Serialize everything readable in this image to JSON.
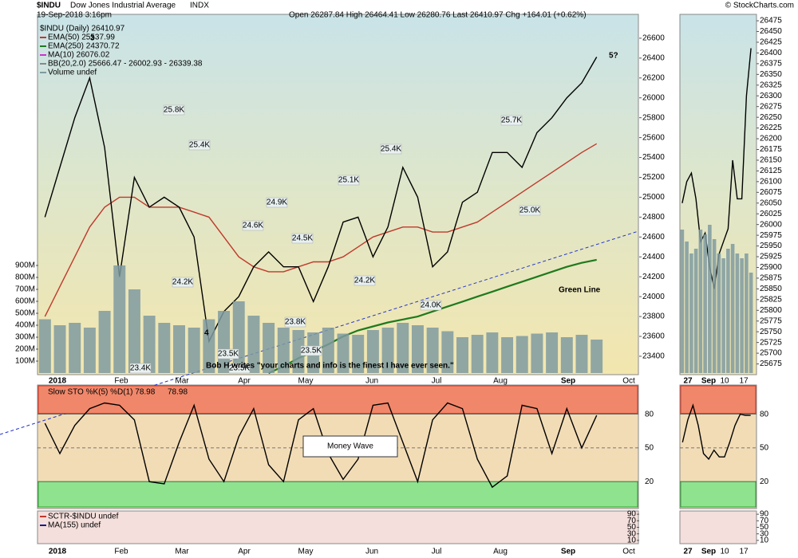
{
  "header": {
    "symbol": "$INDU",
    "name": "Dow Jones Industrial Average",
    "exchange": "INDX",
    "date": "19-Sep-2018 3:16pm",
    "quote": "Open 26287.84  High 26464.41  Low 26280.76  Last 26410.97  Chg +164.01 (+0.62%)",
    "credit": "© StockCharts.com"
  },
  "chart_data": [
    {
      "type": "line",
      "legend_title": "$INDU (Daily) 26410.97",
      "x_labels": [
        "2018",
        "Feb",
        "Mar",
        "Apr",
        "May",
        "Jun",
        "Jul",
        "Aug",
        "Sep",
        "Oct"
      ],
      "ylim": [
        23215,
        26840
      ],
      "yticks": [
        23400,
        23600,
        23800,
        24000,
        24200,
        24400,
        24600,
        24800,
        25000,
        25200,
        25400,
        25600,
        25800,
        26000,
        26200,
        26400,
        26600
      ],
      "grid": false,
      "series": [
        {
          "name": "EMA(50) 25537.99",
          "color": "#c0392b",
          "values": [
            23800,
            24100,
            24400,
            24700,
            24900,
            25000,
            25000,
            24900,
            24900,
            24900,
            24850,
            24800,
            24600,
            24400,
            24300,
            24250,
            24250,
            24300,
            24350,
            24350,
            24400,
            24500,
            24600,
            24650,
            24700,
            24700,
            24650,
            24650,
            24700,
            24750,
            24850,
            24950,
            25050,
            25150,
            25250,
            25350,
            25450,
            25537.99
          ]
        },
        {
          "name": "EMA(250) 24370.72",
          "color": "#1e7a1e",
          "values": [
            null,
            null,
            null,
            null,
            null,
            null,
            null,
            null,
            null,
            null,
            null,
            null,
            null,
            null,
            null,
            23230,
            23300,
            23380,
            23450,
            23520,
            23600,
            23660,
            23700,
            23740,
            23770,
            23800,
            23850,
            23900,
            23950,
            24000,
            24050,
            24100,
            24150,
            24200,
            24250,
            24300,
            24340,
            24370.72
          ]
        },
        {
          "name": "$INDU close",
          "color": "#000000",
          "values": [
            24800,
            25300,
            25800,
            26200,
            25500,
            24200,
            25200,
            24900,
            25000,
            24900,
            24600,
            23550,
            23850,
            24000,
            24300,
            24450,
            24300,
            24300,
            23950,
            24300,
            24750,
            24800,
            24400,
            24700,
            25300,
            25000,
            24300,
            24450,
            24950,
            25050,
            25450,
            25450,
            25300,
            25650,
            25800,
            26000,
            26150,
            26410.97
          ]
        }
      ],
      "legend_extra": [
        "MA(10) 26076.02",
        "BB(20,2.0) 25666.47 - 26002.93 - 26339.38",
        "Volume undef"
      ],
      "price_labels": [
        "25.8K",
        "25.4K",
        "24.2K",
        "23.4K",
        "23.5K",
        "23.5K",
        "24.6K",
        "24.9K",
        "24.5K",
        "23.8K",
        "23.5K",
        "25.1K",
        "24.2K",
        "25.4K",
        "24.0K",
        "25.7K",
        "25.0K"
      ],
      "annotations": [
        "3",
        "4",
        "5?",
        "Green Line",
        "Bob H writes \"your charts and info is the finest I have ever seen.\""
      ]
    },
    {
      "type": "bar",
      "color": "#7f9aa0",
      "ylim": [
        0,
        3000
      ],
      "yticks": [
        {
          "value": 100,
          "label": "100M"
        },
        {
          "value": 200,
          "label": "200M"
        },
        {
          "value": 300,
          "label": "300M"
        },
        {
          "value": 400,
          "label": "400M"
        },
        {
          "value": 500,
          "label": "500M"
        },
        {
          "value": 600,
          "label": "600M"
        },
        {
          "value": 700,
          "label": "700M"
        },
        {
          "value": 800,
          "label": "800M"
        },
        {
          "value": 900,
          "label": "900M"
        }
      ],
      "values": [
        450,
        400,
        420,
        380,
        520,
        900,
        700,
        480,
        420,
        400,
        380,
        450,
        520,
        600,
        480,
        420,
        380,
        360,
        340,
        380,
        330,
        320,
        360,
        380,
        420,
        400,
        380,
        350,
        300,
        320,
        340,
        300,
        310,
        330,
        340,
        300,
        320,
        280
      ]
    },
    {
      "type": "line",
      "title": "Slow STO %K(5) %D(1) 78.98",
      "title_value": "78.98",
      "annotation": "Money Wave",
      "ylim": [
        -4,
        106
      ],
      "yticks": [
        80,
        50,
        20
      ],
      "grid": true,
      "series": [
        {
          "name": "%K",
          "color": "#000000",
          "values": [
            72,
            45,
            70,
            85,
            90,
            88,
            75,
            20,
            18,
            55,
            88,
            40,
            20,
            60,
            85,
            35,
            20,
            75,
            85,
            45,
            22,
            40,
            88,
            90,
            55,
            20,
            75,
            90,
            85,
            40,
            15,
            25,
            88,
            85,
            45,
            85,
            50,
            78.98
          ]
        }
      ]
    },
    {
      "type": "line",
      "ylim": [
        0,
        100
      ],
      "yticks": [
        90,
        70,
        50,
        30,
        10
      ],
      "grid": false,
      "series": [
        {
          "name": "SCTR-$INDU undef",
          "color": "#c0392b",
          "values": []
        },
        {
          "name": "MA(155) undef",
          "color": "#1a1a8c",
          "values": []
        }
      ]
    },
    {
      "type": "line",
      "x_labels": [
        "27",
        "Sep",
        "10",
        "17"
      ],
      "ylim": [
        25650,
        26490
      ],
      "yticks": [
        25675,
        25700,
        25725,
        25750,
        25775,
        25800,
        25825,
        25850,
        25875,
        25900,
        25925,
        25950,
        25975,
        26000,
        26025,
        26050,
        26075,
        26100,
        26125,
        26150,
        26175,
        26200,
        26225,
        26250,
        26275,
        26300,
        26325,
        26350,
        26375,
        26400,
        26425,
        26450,
        26475
      ],
      "grid": false,
      "series": [
        {
          "name": "close",
          "color": "#000000",
          "values": [
            26050,
            26100,
            26120,
            26060,
            25960,
            25980,
            25900,
            25850,
            25930,
            25960,
            25990,
            26150,
            26060,
            26060,
            26300,
            26410.97
          ]
        }
      ]
    },
    {
      "type": "bar",
      "color": "#7f9aa0",
      "ylim": [
        0,
        1500
      ],
      "values": [
        600,
        550,
        500,
        520,
        600,
        580,
        620,
        560,
        500,
        480,
        520,
        540,
        500,
        480,
        500,
        420
      ]
    },
    {
      "type": "line",
      "ylim": [
        -4,
        106
      ],
      "yticks": [
        80,
        50,
        20
      ],
      "grid": true,
      "series": [
        {
          "name": "%K",
          "color": "#000000",
          "values": [
            55,
            75,
            88,
            70,
            45,
            40,
            48,
            42,
            42,
            55,
            70,
            80,
            79,
            78.98
          ]
        }
      ]
    },
    {
      "type": "line",
      "ylim": [
        0,
        100
      ],
      "yticks": [
        90,
        70,
        50,
        30,
        10
      ],
      "grid": false,
      "series": []
    }
  ]
}
